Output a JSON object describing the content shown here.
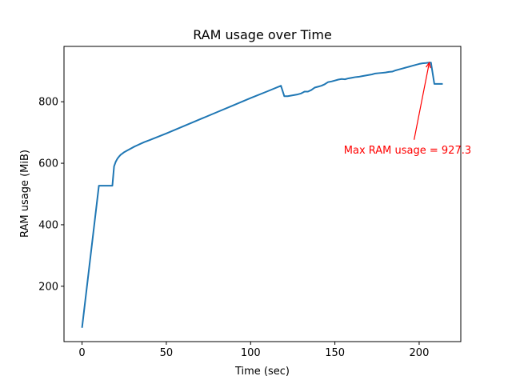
{
  "chart_data": {
    "type": "line",
    "title": "RAM usage over Time",
    "xlabel": "Time (sec)",
    "ylabel": "RAM usage (MiB)",
    "xlim": [
      -10.7,
      224.7
    ],
    "ylim": [
      20,
      980
    ],
    "xticks": [
      0,
      50,
      100,
      150,
      200
    ],
    "yticks": [
      200,
      400,
      600,
      800
    ],
    "grid": false,
    "series_color": "#1f77b4",
    "annotation_color": "#ff0000",
    "series": [
      {
        "x": [
          0,
          10,
          18,
          19,
          20,
          21,
          22,
          23,
          24,
          25,
          27,
          29,
          31,
          33,
          35,
          37,
          40,
          50,
          60,
          70,
          80,
          90,
          100,
          110,
          118,
          120,
          122,
          124,
          126,
          128,
          130,
          132,
          134,
          136,
          138,
          140,
          142,
          144,
          146,
          148,
          150,
          152,
          154,
          156,
          158,
          160,
          162,
          164,
          166,
          168,
          170,
          172,
          174,
          176,
          178,
          180,
          182,
          184,
          186,
          188,
          190,
          192,
          194,
          196,
          198,
          200,
          202,
          204,
          206,
          207,
          209,
          211,
          214
        ],
        "y": [
          65,
          527,
          527,
          590,
          605,
          615,
          622,
          628,
          632,
          636,
          642,
          648,
          654,
          659,
          664,
          669,
          675,
          697,
          720,
          743,
          766,
          789,
          812,
          834,
          852,
          818,
          818,
          820,
          822,
          824,
          827,
          833,
          833,
          838,
          846,
          849,
          852,
          857,
          864,
          866,
          869,
          872,
          874,
          873,
          876,
          878,
          880,
          881,
          883,
          885,
          887,
          889,
          892,
          893,
          894,
          895,
          897,
          898,
          902,
          905,
          908,
          911,
          914,
          917,
          920,
          923,
          925,
          926,
          927.3,
          927.3,
          858,
          858,
          858
        ]
      }
    ],
    "annotation": {
      "text": "Max RAM usage = 927.3",
      "arrow_tip": [
        206,
        927.3
      ],
      "text_anchor": [
        155.3,
        632
      ]
    }
  }
}
